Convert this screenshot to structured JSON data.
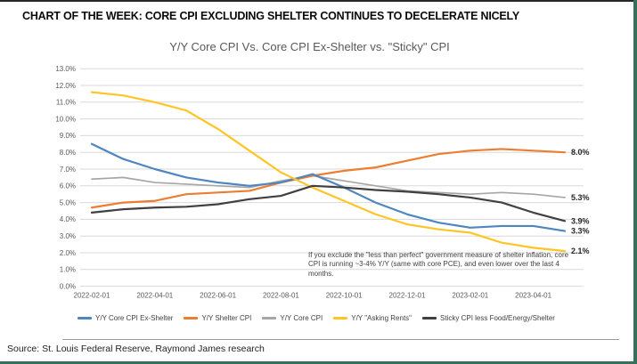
{
  "header": {
    "title": "CHART OF THE WEEK: CORE CPI EXCLUDING SHELTER CONTINUES TO DECELERATE NICELY"
  },
  "chart_data": {
    "type": "line",
    "title": "Y/Y Core CPI Vs. Core CPI Ex-Shelter vs. \"Sticky\" CPI",
    "x": [
      "2022-02-01",
      "2022-03-01",
      "2022-04-01",
      "2022-05-01",
      "2022-06-01",
      "2022-07-01",
      "2022-08-01",
      "2022-09-01",
      "2022-10-01",
      "2022-11-01",
      "2022-12-01",
      "2023-01-01",
      "2023-02-01",
      "2023-03-01",
      "2023-04-01",
      "2023-05-01"
    ],
    "x_ticks": [
      "2022-02-01",
      "2022-04-01",
      "2022-06-01",
      "2022-08-01",
      "2022-10-01",
      "2022-12-01",
      "2023-02-01",
      "2023-04-01"
    ],
    "y_ticks": [
      "0.0%",
      "1.0%",
      "2.0%",
      "3.0%",
      "4.0%",
      "5.0%",
      "6.0%",
      "7.0%",
      "8.0%",
      "9.0%",
      "10.0%",
      "11.0%",
      "12.0%",
      "13.0%"
    ],
    "ylim": [
      0,
      13
    ],
    "grid": "horizontal",
    "gridline_color": "#D9D9D9",
    "legend_position": "bottom",
    "series": [
      {
        "name": "Y/Y Core CPI Ex-Shelter",
        "color": "#4E86C0",
        "end_label": "3.3%",
        "values": [
          8.5,
          7.6,
          7.0,
          6.5,
          6.2,
          6.0,
          6.2,
          6.7,
          5.9,
          5.0,
          4.3,
          3.8,
          3.5,
          3.6,
          3.6,
          3.3
        ]
      },
      {
        "name": "Y/Y Shelter CPI",
        "color": "#ED7D31",
        "end_label": "8.0%",
        "values": [
          4.7,
          5.0,
          5.1,
          5.5,
          5.6,
          5.7,
          6.2,
          6.6,
          6.9,
          7.1,
          7.5,
          7.9,
          8.1,
          8.2,
          8.1,
          8.0
        ]
      },
      {
        "name": "Y/Y Core CPI",
        "color": "#A6A6A6",
        "end_label": "5.3%",
        "values": [
          6.4,
          6.5,
          6.2,
          6.1,
          6.0,
          5.9,
          6.3,
          6.6,
          6.3,
          6.0,
          5.7,
          5.6,
          5.5,
          5.6,
          5.5,
          5.3
        ]
      },
      {
        "name": "Y/Y \"Asking Rents\"",
        "color": "#FFC425",
        "end_label": "2.1%",
        "values": [
          11.6,
          11.4,
          11.0,
          10.5,
          9.4,
          8.1,
          6.8,
          5.9,
          5.1,
          4.3,
          3.7,
          3.4,
          3.2,
          2.6,
          2.3,
          2.1
        ]
      },
      {
        "name": "Sticky CPI less Food/Energy/Shelter",
        "color": "#404040",
        "end_label": "3.9%",
        "values": [
          4.4,
          4.6,
          4.7,
          4.75,
          4.9,
          5.2,
          5.4,
          6.0,
          5.9,
          5.75,
          5.65,
          5.5,
          5.3,
          5.0,
          4.4,
          3.9
        ]
      }
    ],
    "annotation": "If you exclude the \"less than perfect\" government measure of shelter inflation, core CPI is running ~3-4% Y/Y (same with core PCE), and even lower over the last 4 months."
  },
  "footer": {
    "source": "Source: St. Louis Federal Reserve, Raymond James research"
  }
}
